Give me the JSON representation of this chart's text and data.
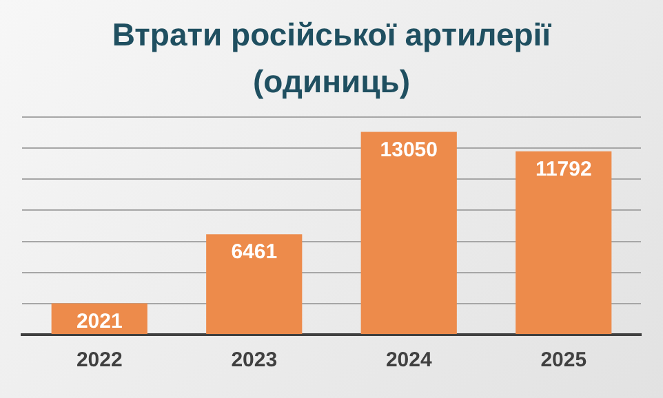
{
  "chart_data": {
    "type": "bar",
    "title": "Втрати російської артилерії (одиниць)",
    "categories": [
      "2022",
      "2023",
      "2024",
      "2025"
    ],
    "values": [
      2021,
      6461,
      13050,
      11792
    ],
    "color": "#ed8b4b",
    "ylim": [
      0,
      14000
    ],
    "yticks": [
      {
        "value": 0,
        "label": null
      },
      {
        "value": 2000,
        "label": null
      },
      {
        "value": 4000,
        "label": null
      },
      {
        "value": 6000,
        "label": null
      },
      {
        "value": 8000,
        "label": null
      },
      {
        "value": 10000,
        "label": null
      },
      {
        "value": 12000,
        "label": null
      },
      {
        "value": 14000,
        "label": null
      }
    ],
    "tick_labels": "x",
    "grid": "y",
    "data_labels": true,
    "legend": false
  }
}
